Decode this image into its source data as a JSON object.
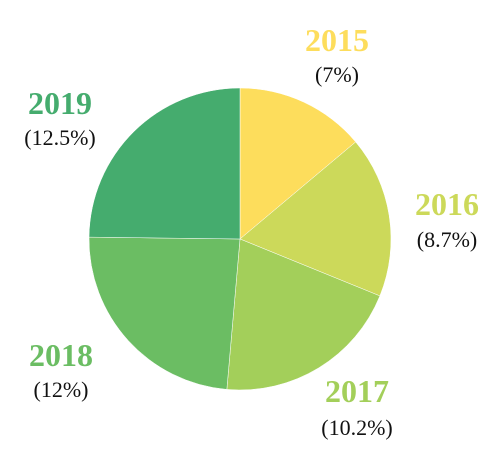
{
  "chart_data": {
    "type": "pie",
    "title": "",
    "start_angle_deg": 90,
    "direction": "clockwise",
    "slices": [
      {
        "label": "2015",
        "value_label": "(7%)",
        "value": 7.0,
        "color": "#FDDD5C"
      },
      {
        "label": "2016",
        "value_label": "(8.7%)",
        "value": 8.7,
        "color": "#CCD95A"
      },
      {
        "label": "2017",
        "value_label": "(10.2%)",
        "value": 10.2,
        "color": "#A3CF5A"
      },
      {
        "label": "2018",
        "value_label": "(12%)",
        "value": 12.0,
        "color": "#6BBD63"
      },
      {
        "label": "2019",
        "value_label": "(12.5%)",
        "value": 12.5,
        "color": "#45AC6E"
      }
    ],
    "legend": "none"
  }
}
